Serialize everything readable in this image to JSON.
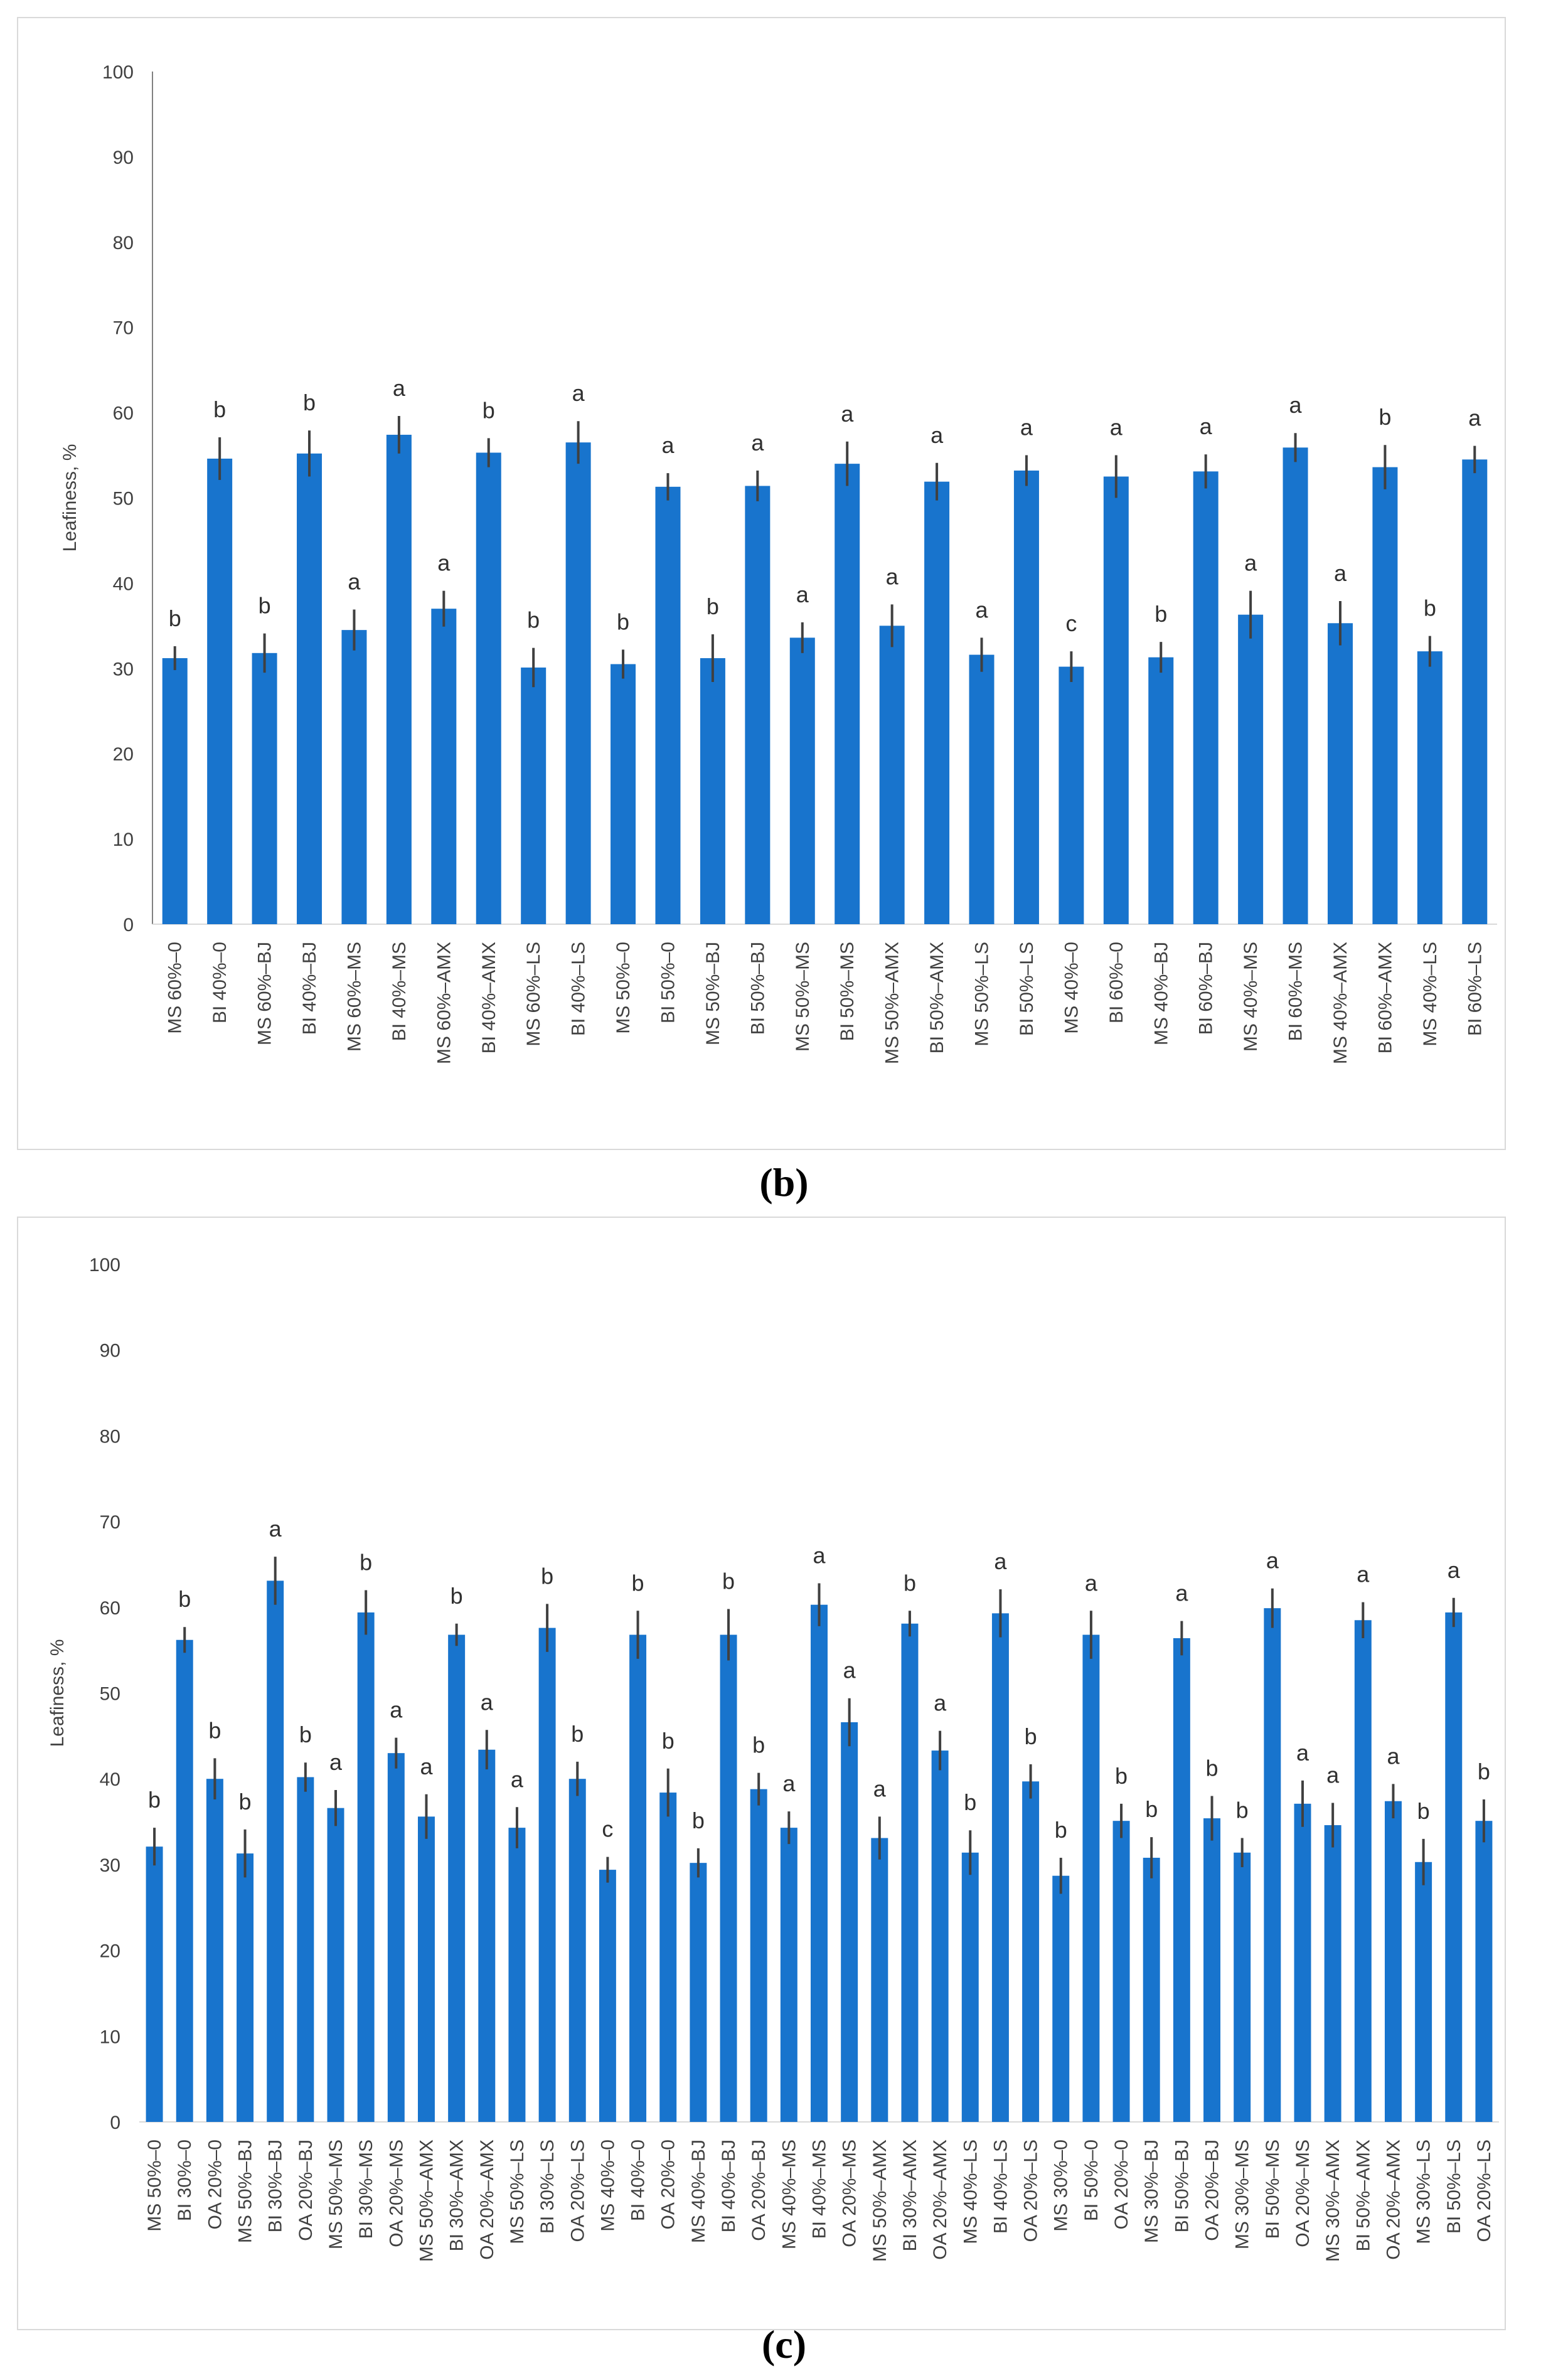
{
  "captions": {
    "b": "(b)",
    "c": "(c)"
  },
  "colors": {
    "bar": "#1874cd",
    "error": "#404040",
    "axis": "#808080",
    "text": "#404040"
  },
  "chart_data": [
    {
      "id": "b",
      "type": "bar",
      "ylabel": "Leafiness, %",
      "ylim": [
        0,
        100
      ],
      "yticks": [
        0,
        10,
        20,
        30,
        40,
        50,
        60,
        70,
        80,
        90,
        100
      ],
      "grid": false,
      "categories": [
        "MS 60%–0",
        "BI 40%–0",
        "MS 60%–BJ",
        "BI 40%–BJ",
        "MS 60%–MS",
        "BI 40%–MS",
        "MS 60%–AMX",
        "BI 40%–AMX",
        "MS 60%–LS",
        "BI 40%–LS",
        "MS 50%–0",
        "BI 50%–0",
        "MS 50%–BJ",
        "BI 50%–BJ",
        "MS 50%–MS",
        "BI 50%–MS",
        "MS 50%–AMX",
        "BI 50%–AMX",
        "MS 50%–LS",
        "BI 50%–LS",
        "MS 40%–0",
        "BI 60%–0",
        "MS 40%–BJ",
        "BI 60%–BJ",
        "MS 40%–MS",
        "BI 60%–MS",
        "MS 40%–AMX",
        "BI 60%–AMX",
        "MS 40%–LS",
        "BI 60%–LS"
      ],
      "values": [
        31.2,
        54.6,
        31.8,
        55.2,
        34.5,
        57.4,
        37.0,
        55.3,
        30.1,
        56.5,
        30.5,
        51.3,
        31.2,
        51.4,
        33.6,
        54.0,
        35.0,
        51.9,
        31.6,
        53.2,
        30.2,
        52.5,
        31.3,
        53.1,
        36.3,
        55.9,
        35.3,
        53.6,
        32.0,
        54.5
      ],
      "errors": [
        1.4,
        2.5,
        2.3,
        2.7,
        2.4,
        2.2,
        2.1,
        1.7,
        2.3,
        2.5,
        1.7,
        1.6,
        2.8,
        1.8,
        1.8,
        2.6,
        2.5,
        2.2,
        2.0,
        1.8,
        1.8,
        2.5,
        1.8,
        2.0,
        2.8,
        1.7,
        2.6,
        2.6,
        1.8,
        1.6
      ],
      "letters": [
        "b",
        "b",
        "b",
        "b",
        "a",
        "a",
        "a",
        "b",
        "b",
        "a",
        "b",
        "a",
        "b",
        "a",
        "a",
        "a",
        "a",
        "a",
        "a",
        "a",
        "c",
        "a",
        "b",
        "a",
        "a",
        "a",
        "a",
        "b",
        "b",
        "a"
      ]
    },
    {
      "id": "c",
      "type": "bar",
      "ylabel": "Leafiness, %",
      "ylim": [
        0,
        100
      ],
      "yticks": [
        0,
        10,
        20,
        30,
        40,
        50,
        60,
        70,
        80,
        90,
        100
      ],
      "grid": false,
      "categories": [
        "MS 50%–0",
        "BI 30%–0",
        "OA 20%–0",
        "MS 50%–BJ",
        "BI 30%–BJ",
        "OA 20%–BJ",
        "MS 50%–MS",
        "BI 30%–MS",
        "OA 20%–MS",
        "MS 50%–AMX",
        "BI 30%–AMX",
        "OA 20%–AMX",
        "MS 50%–LS",
        "BI 30%–LS",
        "OA 20%–LS",
        "MS 40%–0",
        "BI 40%–0",
        "OA 20%–0",
        "MS 40%–BJ",
        "BI 40%–BJ",
        "OA 20%–BJ",
        "MS 40%–MS",
        "BI 40%–MS",
        "OA 20%–MS",
        "MS 50%–AMX",
        "BI 30%–AMX",
        "OA 20%–AMX",
        "MS 40%–LS",
        "BI 40%–LS",
        "OA 20%–LS",
        "MS 30%–0",
        "BI 50%–0",
        "OA 20%–0",
        "MS 30%–BJ",
        "BI 50%–BJ",
        "OA 20%–BJ",
        "MS 30%–MS",
        "BI 50%–MS",
        "OA 20%–MS",
        "MS 30%–AMX",
        "BI 50%–AMX",
        "OA 20%–AMX",
        "MS 30%–LS",
        "BI 50%–LS",
        "OA 20%–LS"
      ],
      "values": [
        32.1,
        56.2,
        40.0,
        31.3,
        63.1,
        40.2,
        36.6,
        59.4,
        43.0,
        35.6,
        56.8,
        43.4,
        34.3,
        57.6,
        40.0,
        29.4,
        56.8,
        38.4,
        30.2,
        56.8,
        38.8,
        34.3,
        60.3,
        46.6,
        33.1,
        58.1,
        43.3,
        31.4,
        59.3,
        39.7,
        28.7,
        56.8,
        35.1,
        30.8,
        56.4,
        35.4,
        31.4,
        59.9,
        37.1,
        34.6,
        58.5,
        37.4,
        30.3,
        59.4,
        35.1
      ],
      "errors": [
        2.2,
        1.5,
        2.4,
        2.8,
        2.8,
        1.7,
        2.1,
        2.6,
        1.8,
        2.6,
        1.3,
        2.3,
        2.4,
        2.8,
        2.0,
        1.5,
        2.8,
        2.8,
        1.7,
        3.0,
        1.9,
        1.9,
        2.5,
        2.8,
        2.5,
        1.5,
        2.3,
        2.6,
        2.8,
        2.0,
        2.1,
        2.8,
        2.0,
        2.4,
        2.0,
        2.6,
        1.7,
        2.3,
        2.7,
        2.6,
        2.1,
        2.0,
        2.7,
        1.7,
        2.5
      ],
      "letters": [
        "b",
        "b",
        "b",
        "b",
        "a",
        "b",
        "a",
        "b",
        "a",
        "a",
        "b",
        "a",
        "a",
        "b",
        "b",
        "c",
        "b",
        "b",
        "b",
        "b",
        "b",
        "a",
        "a",
        "a",
        "a",
        "b",
        "a",
        "b",
        "a",
        "b",
        "b",
        "a",
        "b",
        "b",
        "a",
        "b",
        "b",
        "a",
        "a",
        "a",
        "a",
        "a",
        "b",
        "a",
        "b"
      ]
    }
  ]
}
